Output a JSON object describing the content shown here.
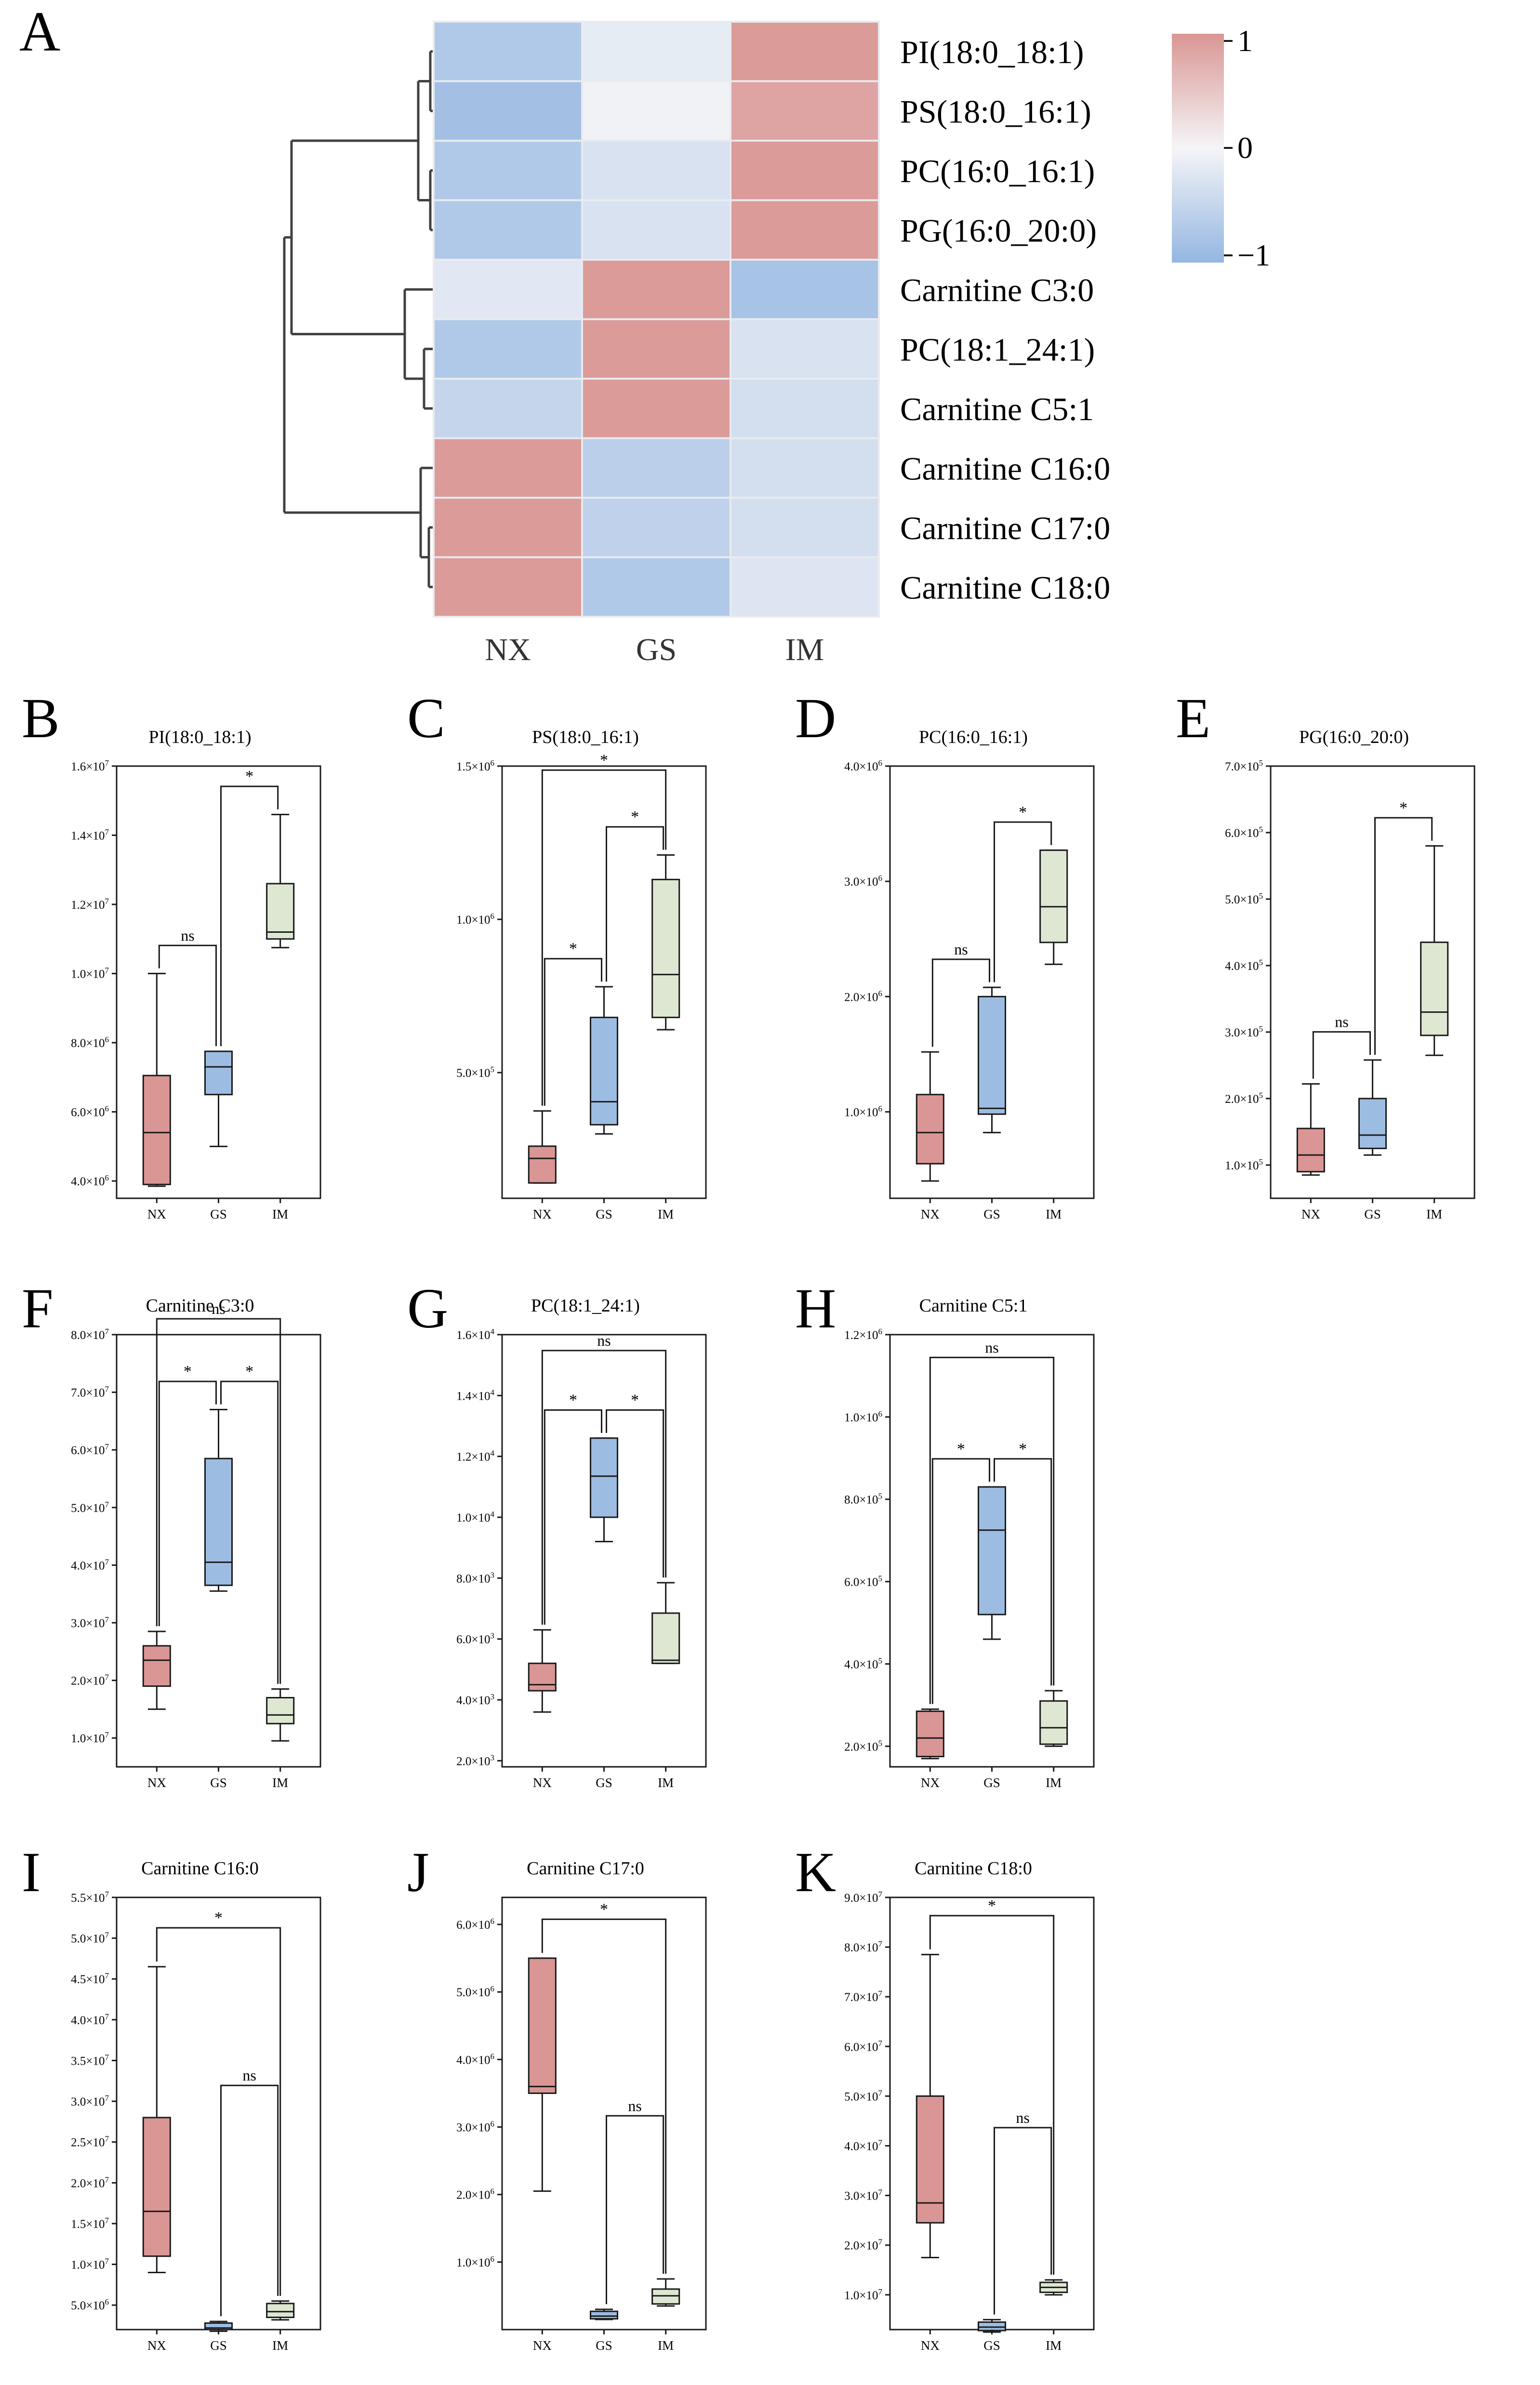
{
  "colors": {
    "NX": "#d99694",
    "GS": "#9dbce2",
    "IM": "#dde7d2",
    "heat_high": "#d99694",
    "heat_mid": "#f5f5f7",
    "heat_low": "#94b6e1",
    "line": "#1a1a1a"
  },
  "groups": [
    "NX",
    "GS",
    "IM"
  ],
  "panel_labels": {
    "A": "A",
    "B": "B",
    "C": "C",
    "D": "D",
    "E": "E",
    "F": "F",
    "G": "G",
    "H": "H",
    "I": "I",
    "J": "J",
    "K": "K"
  },
  "chart_data": [
    {
      "type": "heatmap",
      "panel": "A",
      "columns": [
        "NX",
        "GS",
        "IM"
      ],
      "rows": [
        "PI(18:0_18:1)",
        "PS(18:0_16:1)",
        "PC(16:0_16:1)",
        "PG(16:0_20:0)",
        "Carnitine C3:0",
        "PC(18:1_24:1)",
        "Carnitine C5:1",
        "Carnitine C16:0",
        "Carnitine C17:0",
        "Carnitine C18:0"
      ],
      "values": [
        [
          -0.7,
          -0.15,
          0.95
        ],
        [
          -0.85,
          -0.05,
          0.85
        ],
        [
          -0.7,
          -0.3,
          0.95
        ],
        [
          -0.7,
          -0.3,
          0.95
        ],
        [
          -0.2,
          0.95,
          -0.8
        ],
        [
          -0.7,
          0.95,
          -0.3
        ],
        [
          -0.5,
          0.95,
          -0.35
        ],
        [
          0.95,
          -0.6,
          -0.35
        ],
        [
          0.95,
          -0.55,
          -0.35
        ],
        [
          0.95,
          -0.7,
          -0.25
        ]
      ],
      "colorbar": {
        "ticks": [
          "1",
          "0",
          "−1"
        ],
        "range": [
          -1,
          1
        ]
      }
    },
    {
      "type": "box",
      "panel": "B",
      "title": "PI(18:0_18:1)",
      "exp": 7,
      "ylim": [
        3.5,
        16
      ],
      "yticks": [
        {
          "v": 4,
          "m": "4.0"
        },
        {
          "v": 6,
          "m": "6.0"
        },
        {
          "v": 8,
          "m": "8.0"
        },
        {
          "v": 10,
          "m": "1.0"
        },
        {
          "v": 12,
          "m": "1.2"
        },
        {
          "v": 14,
          "m": "1.4"
        },
        {
          "v": 16,
          "m": "1.6"
        }
      ],
      "ytick_exps": [
        "6",
        "6",
        "6",
        "7",
        "7",
        "7",
        "7"
      ],
      "boxes": [
        {
          "min": 3.85,
          "q1": 3.9,
          "med": 5.4,
          "q3": 7.05,
          "max": 10.0
        },
        {
          "min": 5.0,
          "q1": 6.5,
          "med": 7.3,
          "q3": 7.75,
          "max": 7.75
        },
        {
          "min": 10.75,
          "q1": 11.0,
          "med": 11.2,
          "q3": 12.6,
          "max": 14.6
        }
      ],
      "sig": [
        {
          "a": 0,
          "b": 1,
          "y": 10.0,
          "label": "ns"
        },
        {
          "a": 1,
          "b": 2,
          "y": 14.6,
          "label": "*"
        }
      ]
    },
    {
      "type": "box",
      "panel": "C",
      "title": "PS(18:0_16:1)",
      "exp": 5,
      "ylim": [
        0.9,
        15
      ],
      "yticks": [
        {
          "v": 5,
          "m": "5.0"
        },
        {
          "v": 10,
          "m": "1.0"
        },
        {
          "v": 15,
          "m": "1.5"
        }
      ],
      "ytick_exps": [
        "5",
        "6",
        "6"
      ],
      "boxes": [
        {
          "min": 1.4,
          "q1": 1.4,
          "med": 2.2,
          "q3": 2.6,
          "max": 3.75
        },
        {
          "min": 3.0,
          "q1": 3.3,
          "med": 4.05,
          "q3": 6.8,
          "max": 7.8
        },
        {
          "min": 6.4,
          "q1": 6.8,
          "med": 8.2,
          "q3": 11.3,
          "max": 12.1
        }
      ],
      "sig": [
        {
          "a": 0,
          "b": 1,
          "y": 7.8,
          "label": "*"
        },
        {
          "a": 1,
          "b": 2,
          "y": 12.1,
          "label": "*"
        },
        {
          "a": 0,
          "b": 2,
          "y": 13.6,
          "label": "*"
        }
      ]
    },
    {
      "type": "box",
      "panel": "D",
      "title": "PC(16:0_16:1)",
      "exp": 6,
      "ylim": [
        0.25,
        4.0
      ],
      "yticks": [
        {
          "v": 1,
          "m": "1.0"
        },
        {
          "v": 2,
          "m": "2.0"
        },
        {
          "v": 3,
          "m": "3.0"
        },
        {
          "v": 4,
          "m": "4.0"
        }
      ],
      "ytick_exps": [
        "6",
        "6",
        "6",
        "6"
      ],
      "boxes": [
        {
          "min": 0.4,
          "q1": 0.55,
          "med": 0.82,
          "q3": 1.15,
          "max": 1.52
        },
        {
          "min": 0.82,
          "q1": 0.98,
          "med": 1.03,
          "q3": 2.0,
          "max": 2.08
        },
        {
          "min": 2.28,
          "q1": 2.47,
          "med": 2.78,
          "q3": 3.27,
          "max": 3.27
        }
      ],
      "sig": [
        {
          "a": 0,
          "b": 1,
          "y": 2.08,
          "label": "ns"
        },
        {
          "a": 1,
          "b": 2,
          "y": 3.27,
          "label": "*"
        }
      ]
    },
    {
      "type": "box",
      "panel": "E",
      "title": "PG(16:0_20:0)",
      "exp": 5,
      "ylim": [
        0.5,
        7.0
      ],
      "yticks": [
        {
          "v": 1,
          "m": "1.0"
        },
        {
          "v": 2,
          "m": "2.0"
        },
        {
          "v": 3,
          "m": "3.0"
        },
        {
          "v": 4,
          "m": "4.0"
        },
        {
          "v": 5,
          "m": "5.0"
        },
        {
          "v": 6,
          "m": "6.0"
        },
        {
          "v": 7,
          "m": "7.0"
        }
      ],
      "ytick_exps": [
        "5",
        "5",
        "5",
        "5",
        "5",
        "5",
        "5"
      ],
      "boxes": [
        {
          "min": 0.85,
          "q1": 0.9,
          "med": 1.15,
          "q3": 1.55,
          "max": 2.22
        },
        {
          "min": 1.15,
          "q1": 1.25,
          "med": 1.45,
          "q3": 2.0,
          "max": 2.58
        },
        {
          "min": 2.65,
          "q1": 2.95,
          "med": 3.3,
          "q3": 4.35,
          "max": 5.8
        }
      ],
      "sig": [
        {
          "a": 0,
          "b": 1,
          "y": 2.58,
          "label": "ns"
        },
        {
          "a": 1,
          "b": 2,
          "y": 5.8,
          "label": "*"
        }
      ]
    },
    {
      "type": "box",
      "panel": "F",
      "title": "Carnitine C3:0",
      "exp": 7,
      "ylim": [
        0.5,
        8.0
      ],
      "yticks": [
        {
          "v": 1,
          "m": "1.0"
        },
        {
          "v": 2,
          "m": "2.0"
        },
        {
          "v": 3,
          "m": "3.0"
        },
        {
          "v": 4,
          "m": "4.0"
        },
        {
          "v": 5,
          "m": "5.0"
        },
        {
          "v": 6,
          "m": "6.0"
        },
        {
          "v": 7,
          "m": "7.0"
        },
        {
          "v": 8,
          "m": "8.0"
        }
      ],
      "ytick_exps": [
        "7",
        "7",
        "7",
        "7",
        "7",
        "7",
        "7",
        "7"
      ],
      "boxes": [
        {
          "min": 1.5,
          "q1": 1.9,
          "med": 2.35,
          "q3": 2.6,
          "max": 2.85
        },
        {
          "min": 3.55,
          "q1": 3.65,
          "med": 4.05,
          "q3": 5.85,
          "max": 6.7
        },
        {
          "min": 0.95,
          "q1": 1.25,
          "med": 1.4,
          "q3": 1.7,
          "max": 1.85
        }
      ],
      "sig": [
        {
          "a": 0,
          "b": 1,
          "y": 6.7,
          "label": "*"
        },
        {
          "a": 1,
          "b": 2,
          "y": 6.7,
          "label": "*"
        },
        {
          "a": 0,
          "b": 2,
          "y": 7.6,
          "label": "ns"
        }
      ]
    },
    {
      "type": "box",
      "panel": "G",
      "title": "PC(18:1_24:1)",
      "exp": 4,
      "ylim": [
        0.18,
        1.6
      ],
      "yticks": [
        {
          "v": 0.2,
          "m": "2.0"
        },
        {
          "v": 0.4,
          "m": "4.0"
        },
        {
          "v": 0.6,
          "m": "6.0"
        },
        {
          "v": 0.8,
          "m": "8.0"
        },
        {
          "v": 1.0,
          "m": "1.0"
        },
        {
          "v": 1.2,
          "m": "1.2"
        },
        {
          "v": 1.4,
          "m": "1.4"
        },
        {
          "v": 1.6,
          "m": "1.6"
        }
      ],
      "ytick_exps": [
        "3",
        "3",
        "3",
        "3",
        "4",
        "4",
        "4",
        "4"
      ],
      "boxes": [
        {
          "min": 0.36,
          "q1": 0.43,
          "med": 0.45,
          "q3": 0.52,
          "max": 0.63
        },
        {
          "min": 0.92,
          "q1": 1.0,
          "med": 1.135,
          "q3": 1.26,
          "max": 1.26
        },
        {
          "min": 0.52,
          "q1": 0.52,
          "med": 0.53,
          "q3": 0.685,
          "max": 0.785
        }
      ],
      "sig": [
        {
          "a": 0,
          "b": 1,
          "y": 1.26,
          "label": "*"
        },
        {
          "a": 1,
          "b": 2,
          "y": 1.26,
          "label": "*"
        },
        {
          "a": 0,
          "b": 2,
          "y": 1.42,
          "label": "ns"
        }
      ]
    },
    {
      "type": "box",
      "panel": "H",
      "title": "Carnitine C5:1",
      "exp": 5,
      "ylim": [
        1.5,
        12.0
      ],
      "yticks": [
        {
          "v": 2,
          "m": "2.0"
        },
        {
          "v": 4,
          "m": "4.0"
        },
        {
          "v": 6,
          "m": "6.0"
        },
        {
          "v": 8,
          "m": "8.0"
        },
        {
          "v": 10,
          "m": "1.0"
        },
        {
          "v": 12,
          "m": "1.2"
        }
      ],
      "ytick_exps": [
        "5",
        "5",
        "5",
        "5",
        "6",
        "6"
      ],
      "boxes": [
        {
          "min": 1.7,
          "q1": 1.75,
          "med": 2.2,
          "q3": 2.85,
          "max": 2.9
        },
        {
          "min": 4.6,
          "q1": 5.2,
          "med": 7.25,
          "q3": 8.3,
          "max": 8.3
        },
        {
          "min": 2.0,
          "q1": 2.05,
          "med": 2.45,
          "q3": 3.1,
          "max": 3.35
        }
      ],
      "sig": [
        {
          "a": 0,
          "b": 1,
          "y": 8.3,
          "label": "*"
        },
        {
          "a": 1,
          "b": 2,
          "y": 8.3,
          "label": "*"
        },
        {
          "a": 0,
          "b": 2,
          "y": 10.5,
          "label": "ns"
        }
      ]
    },
    {
      "type": "box",
      "panel": "I",
      "title": "Carnitine C16:0",
      "exp": 7,
      "ylim": [
        0.2,
        5.5
      ],
      "yticks": [
        {
          "v": 0.5,
          "m": "5.0"
        },
        {
          "v": 1.0,
          "m": "1.0"
        },
        {
          "v": 1.5,
          "m": "1.5"
        },
        {
          "v": 2.0,
          "m": "2.0"
        },
        {
          "v": 2.5,
          "m": "2.5"
        },
        {
          "v": 3.0,
          "m": "3.0"
        },
        {
          "v": 3.5,
          "m": "3.5"
        },
        {
          "v": 4.0,
          "m": "4.0"
        },
        {
          "v": 4.5,
          "m": "4.5"
        },
        {
          "v": 5.0,
          "m": "5.0"
        },
        {
          "v": 5.5,
          "m": "5.5"
        }
      ],
      "ytick_exps": [
        "6",
        "7",
        "7",
        "7",
        "7",
        "7",
        "7",
        "7",
        "7",
        "7",
        "7"
      ],
      "boxes": [
        {
          "min": 0.9,
          "q1": 1.1,
          "med": 1.65,
          "q3": 2.8,
          "max": 4.65
        },
        {
          "min": 0.18,
          "q1": 0.2,
          "med": 0.22,
          "q3": 0.28,
          "max": 0.3
        },
        {
          "min": 0.32,
          "q1": 0.35,
          "med": 0.42,
          "q3": 0.52,
          "max": 0.55
        }
      ],
      "sig": [
        {
          "a": 0,
          "b": 2,
          "y": 4.65,
          "label": "*"
        },
        {
          "a": 1,
          "b": 2,
          "y": 2.85,
          "label": "ns"
        }
      ]
    },
    {
      "type": "box",
      "panel": "J",
      "title": "Carnitine C17:0",
      "exp": 6,
      "ylim": [
        0,
        6.4
      ],
      "yticks": [
        {
          "v": 1,
          "m": "1.0"
        },
        {
          "v": 2,
          "m": "2.0"
        },
        {
          "v": 3,
          "m": "3.0"
        },
        {
          "v": 4,
          "m": "4.0"
        },
        {
          "v": 5,
          "m": "5.0"
        },
        {
          "v": 6,
          "m": "6.0"
        }
      ],
      "ytick_exps": [
        "6",
        "6",
        "6",
        "6",
        "6",
        "6"
      ],
      "boxes": [
        {
          "min": 2.05,
          "q1": 3.5,
          "med": 3.6,
          "q3": 5.5,
          "max": 5.5
        },
        {
          "min": 0.15,
          "q1": 0.16,
          "med": 0.2,
          "q3": 0.27,
          "max": 0.3
        },
        {
          "min": 0.35,
          "q1": 0.38,
          "med": 0.5,
          "q3": 0.6,
          "max": 0.75
        }
      ],
      "sig": [
        {
          "a": 0,
          "b": 2,
          "y": 5.5,
          "label": "*"
        },
        {
          "a": 1,
          "b": 2,
          "y": 2.75,
          "label": "ns"
        }
      ]
    },
    {
      "type": "box",
      "panel": "K",
      "title": "Carnitine C18:0",
      "exp": 7,
      "ylim": [
        0.3,
        9.0
      ],
      "yticks": [
        {
          "v": 1,
          "m": "1.0"
        },
        {
          "v": 2,
          "m": "2.0"
        },
        {
          "v": 3,
          "m": "3.0"
        },
        {
          "v": 4,
          "m": "4.0"
        },
        {
          "v": 5,
          "m": "5.0"
        },
        {
          "v": 6,
          "m": "6.0"
        },
        {
          "v": 7,
          "m": "7.0"
        },
        {
          "v": 8,
          "m": "8.0"
        },
        {
          "v": 9,
          "m": "9.0"
        }
      ],
      "ytick_exps": [
        "7",
        "7",
        "7",
        "7",
        "7",
        "7",
        "7",
        "7",
        "7"
      ],
      "boxes": [
        {
          "min": 1.75,
          "q1": 2.45,
          "med": 2.85,
          "q3": 5.0,
          "max": 7.85
        },
        {
          "min": 0.25,
          "q1": 0.28,
          "med": 0.35,
          "q3": 0.45,
          "max": 0.5
        },
        {
          "min": 1.0,
          "q1": 1.05,
          "med": 1.15,
          "q3": 1.25,
          "max": 1.3
        }
      ],
      "sig": [
        {
          "a": 0,
          "b": 2,
          "y": 7.85,
          "label": "*"
        },
        {
          "a": 1,
          "b": 2,
          "y": 3.8,
          "label": "ns"
        }
      ]
    }
  ]
}
